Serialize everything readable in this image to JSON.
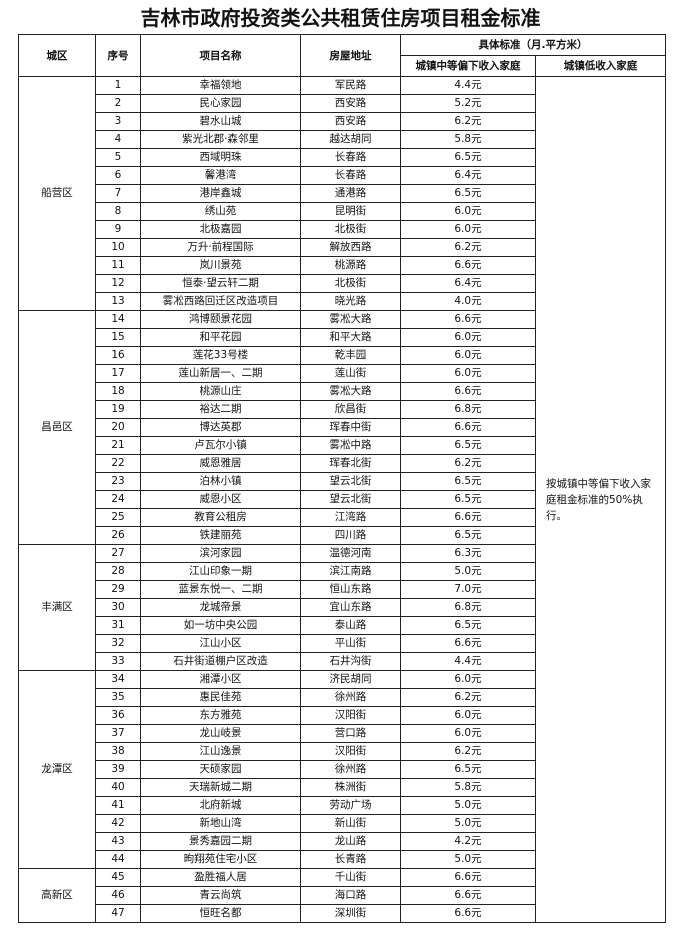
{
  "title": "吉林市政府投资类公共租赁住房项目租金标准",
  "header": {
    "district": "城区",
    "no": "序号",
    "name": "项目名称",
    "address": "房屋地址",
    "standard": "具体标准（月.平方米）",
    "middle": "城镇中等偏下收入家庭",
    "low": "城镇低收入家庭"
  },
  "low_income_note": "按城镇中等偏下收入家庭租金标准的50%执行。",
  "districts": [
    {
      "name": "船营区",
      "rows": [
        [
          "1",
          "幸福领地",
          "军民路",
          "4.4元"
        ],
        [
          "2",
          "民心家园",
          "西安路",
          "5.2元"
        ],
        [
          "3",
          "碧水山城",
          "西安路",
          "6.2元"
        ],
        [
          "4",
          "紫光北郡·森邻里",
          "越达胡同",
          "5.8元"
        ],
        [
          "5",
          "西域明珠",
          "长春路",
          "6.5元"
        ],
        [
          "6",
          "馨港湾",
          "长春路",
          "6.4元"
        ],
        [
          "7",
          "港岸鑫城",
          "通港路",
          "6.5元"
        ],
        [
          "8",
          "绣山苑",
          "昆明街",
          "6.0元"
        ],
        [
          "9",
          "北极嘉园",
          "北极街",
          "6.0元"
        ],
        [
          "10",
          "万升·前程国际",
          "解放西路",
          "6.2元"
        ],
        [
          "11",
          "岚川景苑",
          "桃源路",
          "6.6元"
        ],
        [
          "12",
          "恒泰·望云轩二期",
          "北极街",
          "6.4元"
        ],
        [
          "13",
          "雾凇西路回迁区改造项目",
          "晓光路",
          "4.0元"
        ]
      ]
    },
    {
      "name": "昌邑区",
      "rows": [
        [
          "14",
          "鸿博颐景花园",
          "雾凇大路",
          "6.6元"
        ],
        [
          "15",
          "和平花园",
          "和平大路",
          "6.0元"
        ],
        [
          "16",
          "莲花33号楼",
          "乾丰园",
          "6.0元"
        ],
        [
          "17",
          "莲山新居一、二期",
          "莲山街",
          "6.0元"
        ],
        [
          "18",
          "桃源山庄",
          "雾凇大路",
          "6.6元"
        ],
        [
          "19",
          "裕达二期",
          "欣昌街",
          "6.8元"
        ],
        [
          "20",
          "博达英郡",
          "珲春中街",
          "6.6元"
        ],
        [
          "21",
          "卢瓦尔小镇",
          "雾凇中路",
          "6.5元"
        ],
        [
          "22",
          "威恩雅居",
          "珲春北街",
          "6.2元"
        ],
        [
          "23",
          "泊林小镇",
          "望云北街",
          "6.5元"
        ],
        [
          "24",
          "威恩小区",
          "望云北街",
          "6.5元"
        ],
        [
          "25",
          "教育公租房",
          "江湾路",
          "6.6元"
        ],
        [
          "26",
          "铁建丽苑",
          "四川路",
          "6.5元"
        ]
      ]
    },
    {
      "name": "丰满区",
      "rows": [
        [
          "27",
          "滨河家园",
          "温德河南",
          "6.3元"
        ],
        [
          "28",
          "江山印象一期",
          "滨江南路",
          "5.0元"
        ],
        [
          "29",
          "蓝景东悦一、二期",
          "恒山东路",
          "7.0元"
        ],
        [
          "30",
          "龙城帝景",
          "宜山东路",
          "6.8元"
        ],
        [
          "31",
          "如一坊中央公园",
          "泰山路",
          "6.5元"
        ],
        [
          "32",
          "江山小区",
          "平山街",
          "6.6元"
        ],
        [
          "33",
          "石井街道棚户区改造",
          "石井沟街",
          "4.4元"
        ]
      ]
    },
    {
      "name": "龙潭区",
      "rows": [
        [
          "34",
          "湘潭小区",
          "济民胡同",
          "6.0元"
        ],
        [
          "35",
          "惠民佳苑",
          "徐州路",
          "6.2元"
        ],
        [
          "36",
          "东方雅苑",
          "汉阳街",
          "6.0元"
        ],
        [
          "37",
          "龙山岐景",
          "营口路",
          "6.0元"
        ],
        [
          "38",
          "江山逸景",
          "汉阳街",
          "6.2元"
        ],
        [
          "39",
          "天硕家园",
          "徐州路",
          "6.5元"
        ],
        [
          "40",
          "天瑞新城二期",
          "株洲街",
          "5.8元"
        ],
        [
          "41",
          "北府新城",
          "劳动广场",
          "5.0元"
        ],
        [
          "42",
          "新地山湾",
          "新山街",
          "5.0元"
        ],
        [
          "43",
          "景秀嘉园二期",
          "龙山路",
          "4.2元"
        ],
        [
          "44",
          "昫翔苑住宅小区",
          "长青路",
          "5.0元"
        ]
      ]
    },
    {
      "name": "高新区",
      "rows": [
        [
          "45",
          "盈胜福人居",
          "千山街",
          "6.6元"
        ],
        [
          "46",
          "青云尚筑",
          "海口路",
          "6.6元"
        ],
        [
          "47",
          "恒旺名都",
          "深圳街",
          "6.6元"
        ]
      ]
    }
  ]
}
